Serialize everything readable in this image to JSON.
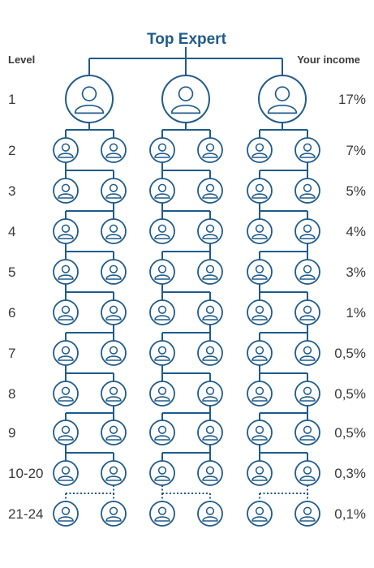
{
  "title": "Top Expert",
  "header_left": "Level",
  "header_right": "Your income",
  "colors": {
    "primary": "#1f5b8c",
    "text": "#3a3a3a",
    "background": "#ffffff"
  },
  "icons": {
    "person": "user-avatar-icon"
  },
  "rows": [
    {
      "level": "1",
      "income": "17%"
    },
    {
      "level": "2",
      "income": "7%"
    },
    {
      "level": "3",
      "income": "5%"
    },
    {
      "level": "4",
      "income": "4%"
    },
    {
      "level": "5",
      "income": "3%"
    },
    {
      "level": "6",
      "income": "1%"
    },
    {
      "level": "7",
      "income": "0,5%"
    },
    {
      "level": "8",
      "income": "0,5%"
    },
    {
      "level": "9",
      "income": "0,5%"
    },
    {
      "level": "10-20",
      "income": "0,3%"
    },
    {
      "level": "21-24",
      "income": "0,1%"
    }
  ]
}
